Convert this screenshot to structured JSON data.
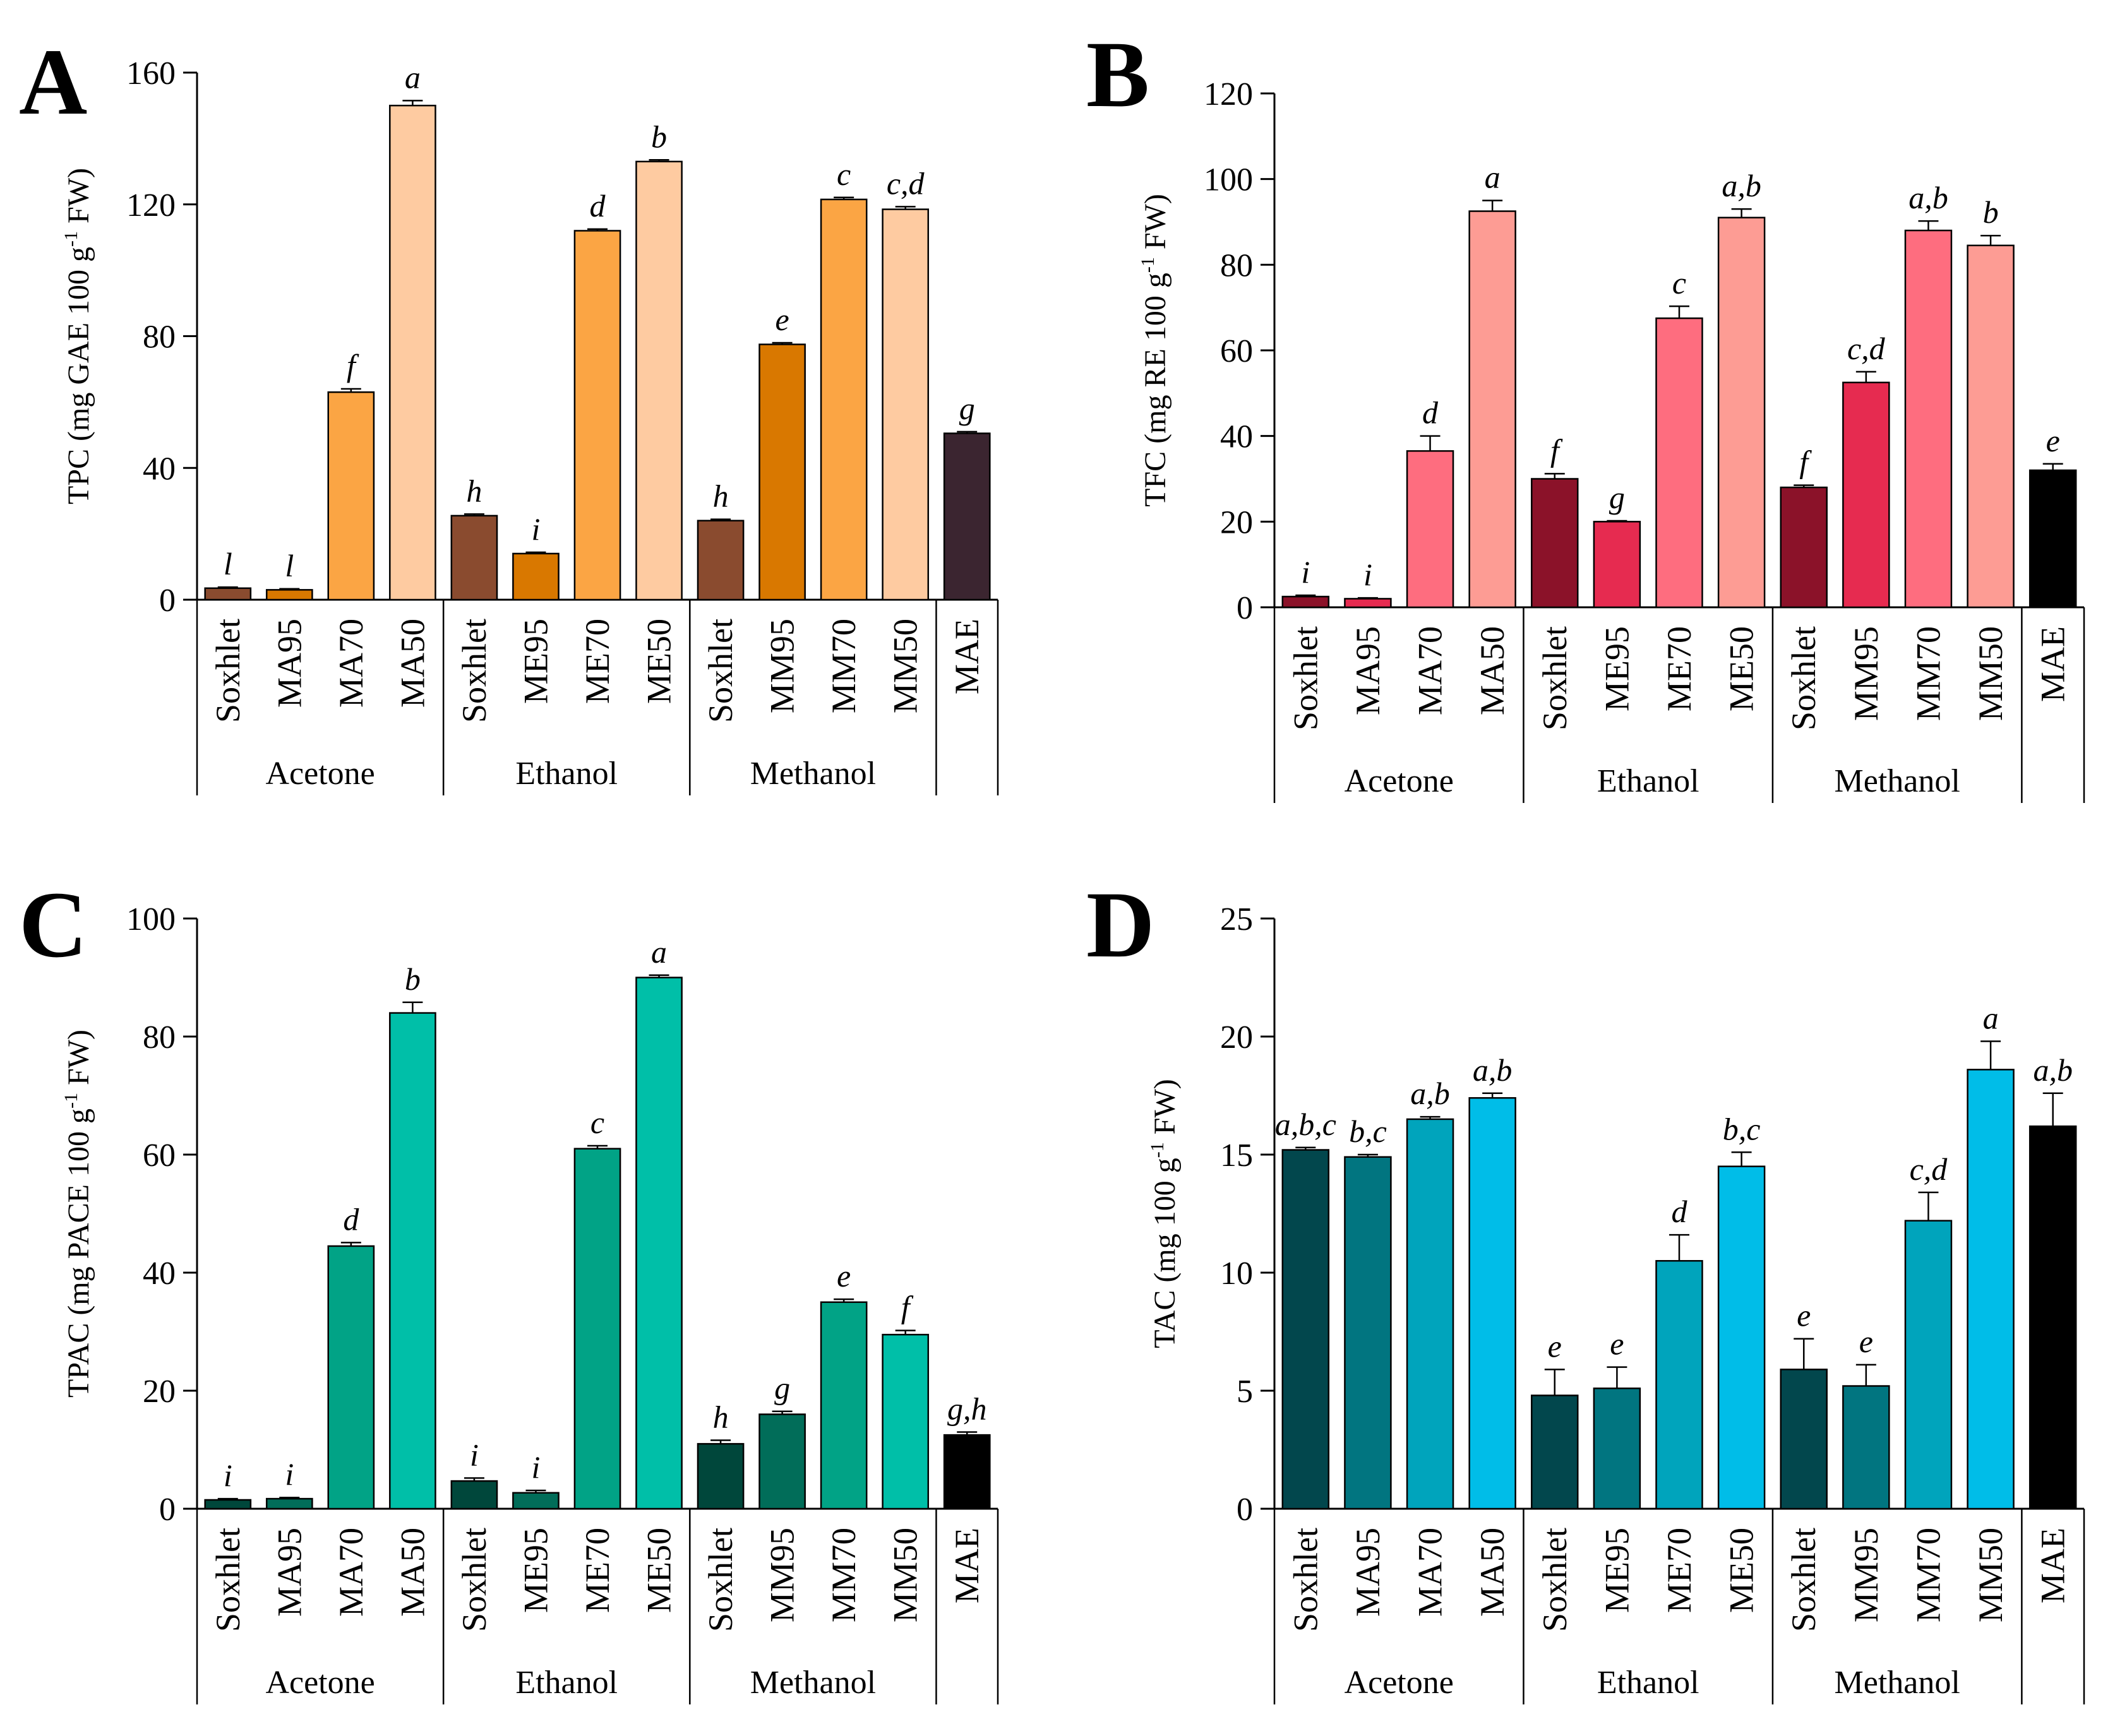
{
  "chart_data": [
    {
      "panel": "A",
      "type": "bar",
      "ylabel": "TPC (mg GAE 100 g-1 FW)",
      "ylabel_parts": {
        "before": "TPC (mg GAE 100 g",
        "sup": "-1",
        "after": " FW)"
      },
      "ylim": [
        0,
        160
      ],
      "yticks": [
        0,
        40,
        80,
        120,
        160
      ],
      "categories": [
        "Soxhlet",
        "MA95",
        "MA70",
        "MA50",
        "Soxhlet",
        "ME95",
        "ME70",
        "ME50",
        "Soxhlet",
        "MM95",
        "MM70",
        "MM50",
        "MAE"
      ],
      "groups": [
        {
          "name": "Acetone",
          "size": 4
        },
        {
          "name": "Ethanol",
          "size": 4
        },
        {
          "name": "Methanol",
          "size": 4
        },
        {
          "name": "",
          "size": 1
        }
      ],
      "values": [
        3.5,
        3,
        63,
        150,
        25.5,
        14,
        112,
        133,
        24,
        77.5,
        121.5,
        118.5,
        50.5
      ],
      "errors": [
        0.3,
        0.3,
        1,
        1.5,
        0.5,
        0.4,
        0.5,
        0.5,
        0.4,
        0.5,
        0.6,
        0.8,
        0.5
      ],
      "letters": [
        "l",
        "l",
        "f",
        "a",
        "h",
        "i",
        "d",
        "b",
        "h",
        "e",
        "c",
        "c,d",
        "g"
      ],
      "colors": [
        "#8a4b2f",
        "#d97800",
        "#fba544",
        "#fecba1",
        "#8a4b2f",
        "#d97800",
        "#fba544",
        "#fecba1",
        "#8a4b2f",
        "#d97800",
        "#fba544",
        "#fecba1",
        "#3b2530"
      ]
    },
    {
      "panel": "B",
      "type": "bar",
      "ylabel": "TFC (mg RE 100 g-1 FW)",
      "ylabel_parts": {
        "before": "TFC (mg RE 100 g",
        "sup": "-1",
        "after": " FW)"
      },
      "ylim": [
        0,
        120
      ],
      "yticks": [
        0,
        20,
        40,
        60,
        80,
        100,
        120
      ],
      "categories": [
        "Soxhlet",
        "MA95",
        "MA70",
        "MA50",
        "Soxhlet",
        "ME95",
        "ME70",
        "ME50",
        "Soxhlet",
        "MM95",
        "MM70",
        "MM50",
        "MAE"
      ],
      "groups": [
        {
          "name": "Acetone",
          "size": 4
        },
        {
          "name": "Ethanol",
          "size": 4
        },
        {
          "name": "Methanol",
          "size": 4
        },
        {
          "name": "",
          "size": 1
        }
      ],
      "values": [
        2.5,
        2,
        36.5,
        92.5,
        30,
        20,
        67.5,
        91,
        28,
        52.5,
        88,
        84.5,
        32
      ],
      "errors": [
        0.3,
        0.2,
        3.5,
        2.5,
        1.2,
        0.2,
        2.8,
        2,
        0.5,
        2.5,
        2.2,
        2.3,
        1.5
      ],
      "letters": [
        "i",
        "i",
        "d",
        "a",
        "f",
        "g",
        "c",
        "a,b",
        "f",
        "c,d",
        "a,b",
        "b",
        "e"
      ],
      "colors": [
        "#8b1229",
        "#e62b50",
        "#fe6d7f",
        "#fd9c94",
        "#8b1229",
        "#e62b50",
        "#fe6d7f",
        "#fd9c94",
        "#8b1229",
        "#e62b50",
        "#fe6d7f",
        "#fd9c94",
        "#000000"
      ]
    },
    {
      "panel": "C",
      "type": "bar",
      "ylabel": "TPAC (mg PACE 100 g-1 FW)",
      "ylabel_parts": {
        "before": "TPAC (mg PACE 100 g",
        "sup": "-1",
        "after": " FW)"
      },
      "ylim": [
        0,
        100
      ],
      "yticks": [
        0,
        20,
        40,
        60,
        80,
        100
      ],
      "categories": [
        "Soxhlet",
        "MA95",
        "MA70",
        "MA50",
        "Soxhlet",
        "ME95",
        "ME70",
        "ME50",
        "Soxhlet",
        "MM95",
        "MM70",
        "MM50",
        "MAE"
      ],
      "groups": [
        {
          "name": "Acetone",
          "size": 4
        },
        {
          "name": "Ethanol",
          "size": 4
        },
        {
          "name": "Methanol",
          "size": 4
        },
        {
          "name": "",
          "size": 1
        }
      ],
      "values": [
        1.5,
        1.7,
        44.5,
        84,
        4.7,
        2.7,
        61,
        90,
        11,
        16,
        35,
        29.5,
        12.5
      ],
      "errors": [
        0.2,
        0.2,
        0.6,
        1.8,
        0.5,
        0.4,
        0.5,
        0.4,
        0.6,
        0.5,
        0.5,
        0.7,
        0.5
      ],
      "letters": [
        "i",
        "i",
        "d",
        "b",
        "i",
        "i",
        "c",
        "a",
        "h",
        "g",
        "e",
        "f",
        "g,h"
      ],
      "colors": [
        "#00473b",
        "#016d59",
        "#01a386",
        "#00bfa8",
        "#00473b",
        "#016d59",
        "#01a386",
        "#00bfa8",
        "#00473b",
        "#016d59",
        "#01a386",
        "#00bfa8",
        "#000000"
      ]
    },
    {
      "panel": "D",
      "type": "bar",
      "ylabel": "TAC (mg 100 g-1 FW)",
      "ylabel_parts": {
        "before": "TAC (mg 100 g",
        "sup": "-1",
        "after": " FW)"
      },
      "ylim": [
        0,
        25
      ],
      "yticks": [
        0,
        5,
        10,
        15,
        20,
        25
      ],
      "categories": [
        "Soxhlet",
        "MA95",
        "MA70",
        "MA50",
        "Soxhlet",
        "ME95",
        "ME70",
        "ME50",
        "Soxhlet",
        "MM95",
        "MM70",
        "MM50",
        "MAE"
      ],
      "groups": [
        {
          "name": "Acetone",
          "size": 4
        },
        {
          "name": "Ethanol",
          "size": 4
        },
        {
          "name": "Methanol",
          "size": 4
        },
        {
          "name": "",
          "size": 1
        }
      ],
      "values": [
        15.2,
        14.9,
        16.5,
        17.4,
        4.8,
        5.1,
        10.5,
        14.5,
        5.9,
        5.2,
        12.2,
        18.6,
        16.2
      ],
      "errors": [
        0.1,
        0.1,
        0.1,
        0.2,
        1.1,
        0.9,
        1.1,
        0.6,
        1.3,
        0.9,
        1.2,
        1.2,
        1.4
      ],
      "letters": [
        "a,b,c",
        "b,c",
        "a,b",
        "a,b",
        "e",
        "e",
        "d",
        "b,c",
        "e",
        "e",
        "c,d",
        "a",
        "a,b"
      ],
      "colors": [
        "#02474d",
        "#017580",
        "#00a4bc",
        "#00bde8",
        "#02474d",
        "#017580",
        "#00a4bc",
        "#00bde8",
        "#02474d",
        "#017580",
        "#00a4bc",
        "#00bde8",
        "#000000"
      ]
    }
  ]
}
